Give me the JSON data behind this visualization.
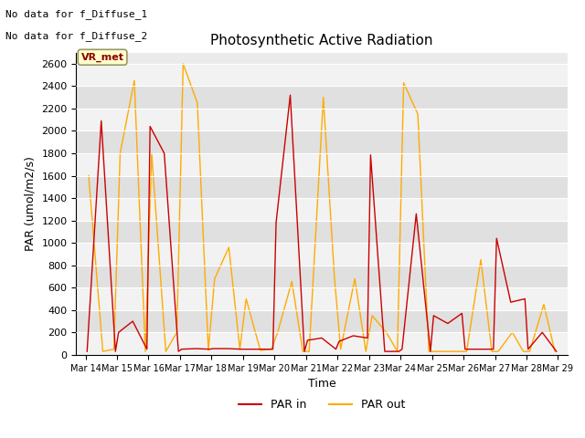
{
  "title": "Photosynthetic Active Radiation",
  "xlabel": "Time",
  "ylabel": "PAR (umol/m2/s)",
  "ylim": [
    0,
    2700
  ],
  "yticks": [
    0,
    200,
    400,
    600,
    800,
    1000,
    1200,
    1400,
    1600,
    1800,
    2000,
    2200,
    2400,
    2600
  ],
  "x_labels": [
    "Mar 14",
    "Mar 15",
    "Mar 16",
    "Mar 17",
    "Mar 18",
    "Mar 19",
    "Mar 20",
    "Mar 21",
    "Mar 22",
    "Mar 23",
    "Mar 24",
    "Mar 25",
    "Mar 26",
    "Mar 27",
    "Mar 28",
    "Mar 29"
  ],
  "par_in_color": "#cc0000",
  "par_out_color": "#ffaa00",
  "text_no_data_1": "No data for f_Diffuse_1",
  "text_no_data_2": "No data for f_Diffuse_2",
  "legend_label_text": "VR_met",
  "plot_bg_color": "#ebebeb",
  "band_color_light": "#f2f2f2",
  "band_color_dark": "#e0e0e0",
  "par_in_x": [
    0.05,
    0.5,
    0.95,
    1.05,
    1.5,
    1.95,
    2.05,
    2.5,
    2.95,
    3.05,
    3.5,
    3.95,
    4.05,
    4.5,
    4.95,
    5.05,
    5.5,
    5.95,
    6.05,
    6.5,
    6.95,
    7.05,
    7.5,
    7.95,
    8.05,
    8.5,
    8.95,
    9.05,
    9.5,
    9.95,
    10.05,
    10.5,
    10.95,
    11.05,
    11.5,
    11.95,
    12.05,
    12.5,
    12.95,
    13.05,
    13.5,
    13.95,
    14.05,
    14.5,
    14.95
  ],
  "par_in_y": [
    30,
    2090,
    30,
    200,
    300,
    50,
    2040,
    1800,
    30,
    50,
    55,
    50,
    55,
    55,
    50,
    50,
    50,
    50,
    1180,
    2320,
    30,
    130,
    150,
    50,
    120,
    170,
    150,
    1785,
    30,
    30,
    50,
    1260,
    30,
    350,
    280,
    370,
    50,
    50,
    50,
    1040,
    470,
    500,
    50,
    200,
    30
  ],
  "par_out_x": [
    0.1,
    0.55,
    0.9,
    1.1,
    1.55,
    1.9,
    2.1,
    2.55,
    2.9,
    3.1,
    3.55,
    3.9,
    4.1,
    4.55,
    4.9,
    5.1,
    5.55,
    5.9,
    6.1,
    6.55,
    6.9,
    7.1,
    7.55,
    7.9,
    8.1,
    8.55,
    8.9,
    9.1,
    9.55,
    9.9,
    10.1,
    10.55,
    10.9,
    11.1,
    11.55,
    11.9,
    12.1,
    12.55,
    12.9,
    13.1,
    13.55,
    13.9,
    14.1,
    14.55,
    14.9
  ],
  "par_out_y": [
    1600,
    30,
    50,
    1800,
    2450,
    30,
    1800,
    30,
    200,
    2600,
    2250,
    40,
    680,
    960,
    50,
    500,
    40,
    50,
    200,
    655,
    30,
    30,
    2300,
    700,
    50,
    680,
    30,
    350,
    200,
    30,
    2430,
    2150,
    30,
    30,
    30,
    30,
    30,
    850,
    30,
    30,
    200,
    30,
    30,
    450,
    30
  ]
}
